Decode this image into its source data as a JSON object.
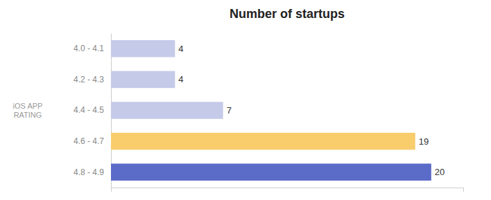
{
  "chart_data": {
    "type": "bar",
    "orientation": "horizontal",
    "title": "Number of startups",
    "ylabel": "iOS APP\nRATING",
    "categories": [
      "4.0 - 4.1",
      "4.2 - 4.3",
      "4.4 - 4.5",
      "4.6 - 4.7",
      "4.8 - 4.9"
    ],
    "values": [
      4,
      4,
      7,
      19,
      20
    ],
    "colors": [
      "#c5cae9",
      "#c5cae9",
      "#c5cae9",
      "#f9cc6c",
      "#5b6bc8"
    ],
    "xlim": [
      0,
      22
    ],
    "data_labels": true,
    "tick_labels": "y",
    "grid": false
  }
}
